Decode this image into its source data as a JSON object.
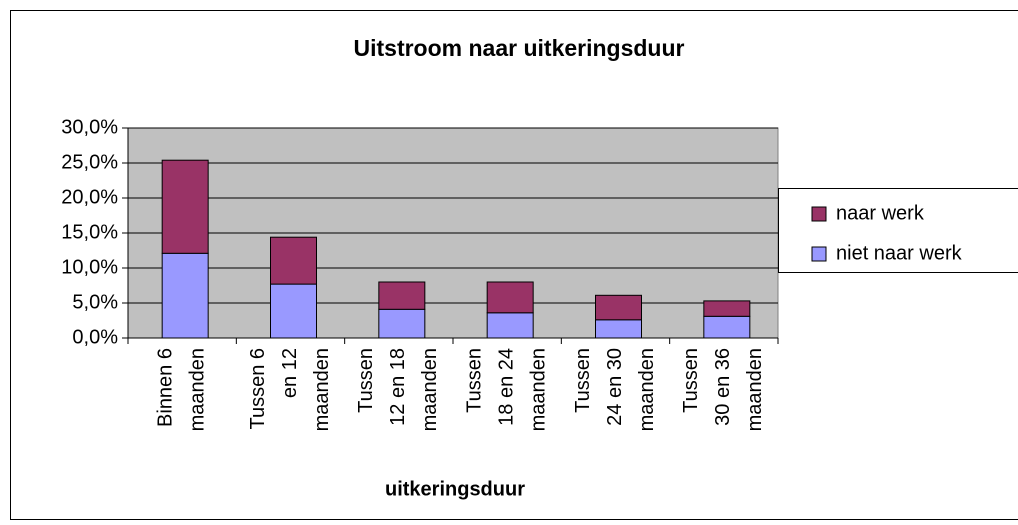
{
  "chart_data": {
    "type": "stacked_bar",
    "title": "Uitstroom naar uitkeringsduur",
    "x_label": "uitkeringsduur",
    "categories": [
      [
        "Binnen 6",
        "maanden"
      ],
      [
        "Tussen 6",
        "en 12",
        "maanden"
      ],
      [
        "Tussen",
        "12 en 18",
        "maanden"
      ],
      [
        "Tussen",
        "18 en 24",
        "maanden"
      ],
      [
        "Tussen",
        "24 en 30",
        "maanden"
      ],
      [
        "Tussen",
        "30 en 36",
        "maanden"
      ]
    ],
    "series": [
      {
        "name": "niet naar werk",
        "color": "#9999ff",
        "values": [
          12.1,
          7.7,
          4.1,
          3.6,
          2.6,
          3.1
        ]
      },
      {
        "name": "naar werk",
        "color": "#993366",
        "values": [
          13.3,
          6.7,
          3.9,
          4.4,
          3.5,
          2.2
        ]
      }
    ],
    "ylim": [
      0,
      30
    ],
    "yticks": [
      {
        "value": 0,
        "label": "0,0%"
      },
      {
        "value": 5,
        "label": "5,0%"
      },
      {
        "value": 10,
        "label": "10,0%"
      },
      {
        "value": 15,
        "label": "15,0%"
      },
      {
        "value": 20,
        "label": "20,0%"
      },
      {
        "value": 25,
        "label": "25,0%"
      },
      {
        "value": 30,
        "label": "30,0%"
      }
    ],
    "grid": true,
    "legend": "right"
  }
}
